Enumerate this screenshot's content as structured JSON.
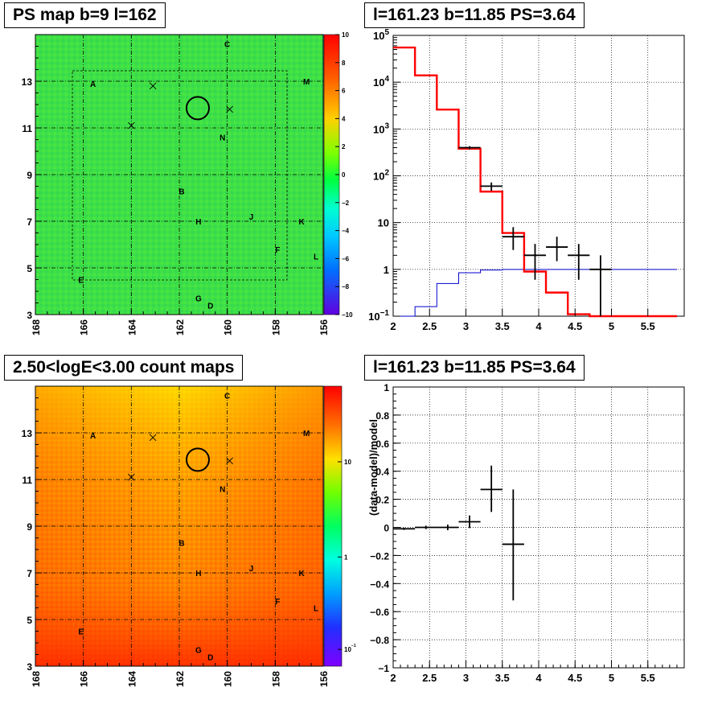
{
  "titles": {
    "tl": "PS map b=9 l=162",
    "tr": "l=161.23 b=11.85 PS=3.64",
    "bl": "2.50<logE<3.00 count maps",
    "br": "l=161.23 b=11.85 PS=3.64"
  },
  "colors": {
    "data": "#000000",
    "model": "#ff0000",
    "background_model": "#0000cc",
    "grid": "#000000",
    "circle": "#000000"
  },
  "chart_data": [
    {
      "type": "heatmap",
      "title": "PS map b=9 l=162",
      "x_ticks": [
        "168",
        "166",
        "164",
        "162",
        "160",
        "158",
        "156"
      ],
      "y_ticks": [
        "3",
        "5",
        "7",
        "9",
        "11",
        "13"
      ],
      "xlim": [
        168,
        156
      ],
      "ylim": [
        3,
        15
      ],
      "colorbar": {
        "scale": "linear",
        "range": [
          -10,
          10
        ],
        "ticks": [
          "10",
          "8",
          "6",
          "4",
          "2",
          "0",
          "−2",
          "−4",
          "−6",
          "−8",
          "−10"
        ]
      },
      "sources": [
        {
          "label": "A",
          "l": 165.6,
          "b": 12.9
        },
        {
          "label": "B",
          "l": 161.9,
          "b": 8.3
        },
        {
          "label": "C",
          "l": 160.0,
          "b": 14.6
        },
        {
          "label": "D",
          "l": 160.7,
          "b": 3.4
        },
        {
          "label": "E",
          "l": 166.1,
          "b": 4.5
        },
        {
          "label": "F",
          "l": 157.9,
          "b": 5.8
        },
        {
          "label": "G",
          "l": 161.2,
          "b": 3.7
        },
        {
          "label": "H",
          "l": 161.2,
          "b": 7.0
        },
        {
          "label": "J",
          "l": 159.0,
          "b": 7.2
        },
        {
          "label": "K",
          "l": 156.9,
          "b": 7.0
        },
        {
          "label": "L",
          "l": 156.3,
          "b": 5.5
        },
        {
          "label": "M",
          "l": 156.7,
          "b": 13.0
        },
        {
          "label": "N",
          "l": 160.2,
          "b": 10.6
        }
      ],
      "crosses": [
        {
          "l": 163.1,
          "b": 12.8
        },
        {
          "l": 164.0,
          "b": 11.1
        },
        {
          "l": 159.9,
          "b": 11.8
        }
      ],
      "circle": {
        "l": 161.23,
        "b": 11.85
      }
    },
    {
      "type": "line",
      "title": "l=161.23 b=11.85 PS=3.64",
      "xlabel": "",
      "ylabel": "",
      "x_ticks": [
        "2",
        "2.5",
        "3",
        "3.5",
        "4",
        "4.5",
        "5",
        "5.5"
      ],
      "y_ticks": [
        "10^-1",
        "1",
        "10",
        "10^2",
        "10^3",
        "10^4",
        "10^5"
      ],
      "xlim": [
        2,
        6
      ],
      "ylim": [
        0.1,
        100000
      ],
      "yscale": "log",
      "grid": true,
      "bin_edges": [
        2.0,
        2.3,
        2.6,
        2.9,
        3.2,
        3.5,
        3.8,
        4.1,
        4.4,
        4.7,
        5.0,
        5.3,
        5.6,
        5.9
      ],
      "series": [
        {
          "values": [
            55000,
            14000,
            2600,
            380,
            46,
            6,
            0.9,
            0.32,
            0.11,
            0.1,
            0.1,
            0.1,
            0.1
          ]
        },
        {
          "values": [
            0.1,
            0.16,
            0.5,
            0.85,
            0.97,
            1.0,
            1.0,
            1.0,
            1.0,
            1.0,
            1.0,
            1.0,
            1.0
          ]
        }
      ],
      "points": [
        {
          "x": 3.05,
          "y": 400,
          "xerr": 0.15,
          "ylo": 370,
          "yhi": 430
        },
        {
          "x": 3.35,
          "y": 60,
          "xerr": 0.15,
          "ylo": 48,
          "yhi": 72
        },
        {
          "x": 3.65,
          "y": 5.0,
          "xerr": 0.15,
          "ylo": 2.6,
          "yhi": 8.0
        },
        {
          "x": 3.95,
          "y": 2.0,
          "xerr": 0.15,
          "ylo": 0.6,
          "yhi": 3.5
        },
        {
          "x": 4.25,
          "y": 3.0,
          "xerr": 0.15,
          "ylo": 1.5,
          "yhi": 5.0
        },
        {
          "x": 4.55,
          "y": 2.0,
          "xerr": 0.15,
          "ylo": 0.6,
          "yhi": 3.5
        },
        {
          "x": 4.85,
          "y": 1.0,
          "xerr": 0.15,
          "ylo": 0.1,
          "yhi": 2.0
        }
      ]
    },
    {
      "type": "heatmap",
      "title": "2.50<logE<3.00 count maps",
      "x_ticks": [
        "168",
        "166",
        "164",
        "162",
        "160",
        "158",
        "156"
      ],
      "y_ticks": [
        "3",
        "5",
        "7",
        "9",
        "11",
        "13"
      ],
      "xlim": [
        168,
        156
      ],
      "ylim": [
        3,
        15
      ],
      "colorbar": {
        "scale": "log",
        "ticks": [
          "10",
          "1",
          "10^-1"
        ]
      }
    },
    {
      "type": "scatter",
      "title": "l=161.23 b=11.85 PS=3.64",
      "xlabel": "",
      "ylabel": "(data-model)/model",
      "x_ticks": [
        "2",
        "2.5",
        "3",
        "3.5",
        "4",
        "4.5",
        "5",
        "5.5"
      ],
      "y_ticks": [
        "−1",
        "−0.8",
        "−0.6",
        "−0.4",
        "−0.2",
        "0",
        "0.2",
        "0.4",
        "0.6",
        "0.8",
        "1"
      ],
      "xlim": [
        2,
        6
      ],
      "ylim": [
        -1,
        1
      ],
      "grid": true,
      "points": [
        {
          "x": 2.15,
          "y": -0.01,
          "xerr": 0.15,
          "ylo": -0.018,
          "yhi": -0.002
        },
        {
          "x": 2.45,
          "y": 0.0,
          "xerr": 0.15,
          "ylo": -0.012,
          "yhi": 0.012
        },
        {
          "x": 2.75,
          "y": 0.0,
          "xerr": 0.15,
          "ylo": -0.02,
          "yhi": 0.02
        },
        {
          "x": 3.05,
          "y": 0.04,
          "xerr": 0.15,
          "ylo": -0.005,
          "yhi": 0.085
        },
        {
          "x": 3.35,
          "y": 0.27,
          "xerr": 0.15,
          "ylo": 0.11,
          "yhi": 0.44
        },
        {
          "x": 3.65,
          "y": -0.12,
          "xerr": 0.15,
          "ylo": -0.52,
          "yhi": 0.27
        }
      ]
    }
  ]
}
